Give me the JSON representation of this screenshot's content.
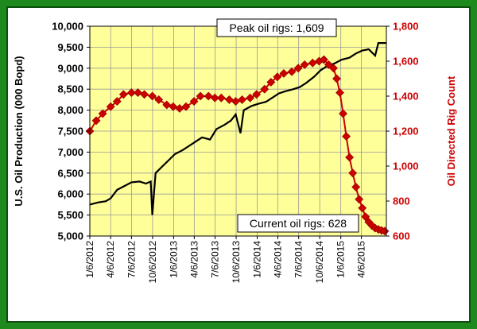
{
  "chart_data": {
    "type": "line",
    "title": "",
    "xlabel": "",
    "ylabel": "U.S. Oil Production (000 Bopd)",
    "ylabel_right": "Oil Directed Rig Count",
    "x_tick_labels": [
      "1/6/2012",
      "4/6/2012",
      "7/6/2012",
      "10/6/2012",
      "1/6/2013",
      "4/6/2013",
      "7/6/2013",
      "10/6/2013",
      "1/6/2014",
      "4/6/2014",
      "7/6/2014",
      "10/6/2014",
      "1/6/2015",
      "4/6/2015"
    ],
    "x_range": [
      "2012-01-06",
      "2015-07-24"
    ],
    "ylim_left": [
      5000,
      10000
    ],
    "ylim_right": [
      600,
      1800
    ],
    "left_ticks": [
      "5,000",
      "5,500",
      "6,000",
      "6,500",
      "7,000",
      "7,500",
      "8,000",
      "8,500",
      "9,000",
      "9,500",
      "10,000"
    ],
    "right_ticks": [
      "600",
      "800",
      "1,000",
      "1,200",
      "1,400",
      "1,600",
      "1,800"
    ],
    "grid": true,
    "colors": {
      "background": "#ffff99",
      "production": "#000000",
      "rigs": "#cc0000",
      "frame": "#1e8a1e"
    },
    "annotations": {
      "peak": "Peak oil rigs: 1,609",
      "current": "Current oil rigs: 628"
    },
    "series": [
      {
        "name": "U.S. Oil Production (000 Bopd)",
        "axis": "left",
        "points": [
          [
            "2012-01-06",
            5750
          ],
          [
            "2012-02-10",
            5800
          ],
          [
            "2012-03-16",
            5830
          ],
          [
            "2012-04-06",
            5900
          ],
          [
            "2012-05-04",
            6100
          ],
          [
            "2012-06-08",
            6200
          ],
          [
            "2012-07-06",
            6280
          ],
          [
            "2012-08-10",
            6300
          ],
          [
            "2012-09-07",
            6250
          ],
          [
            "2012-09-28",
            6300
          ],
          [
            "2012-10-05",
            5500
          ],
          [
            "2012-10-19",
            6500
          ],
          [
            "2012-11-16",
            6650
          ],
          [
            "2012-12-14",
            6800
          ],
          [
            "2013-01-11",
            6950
          ],
          [
            "2013-02-15",
            7050
          ],
          [
            "2013-03-15",
            7150
          ],
          [
            "2013-04-12",
            7250
          ],
          [
            "2013-05-10",
            7350
          ],
          [
            "2013-06-14",
            7300
          ],
          [
            "2013-07-12",
            7550
          ],
          [
            "2013-08-16",
            7650
          ],
          [
            "2013-09-13",
            7750
          ],
          [
            "2013-10-04",
            7900
          ],
          [
            "2013-10-25",
            7450
          ],
          [
            "2013-11-08",
            8000
          ],
          [
            "2013-12-13",
            8100
          ],
          [
            "2014-01-10",
            8150
          ],
          [
            "2014-02-14",
            8200
          ],
          [
            "2014-03-14",
            8300
          ],
          [
            "2014-04-11",
            8400
          ],
          [
            "2014-05-09",
            8450
          ],
          [
            "2014-06-13",
            8500
          ],
          [
            "2014-07-11",
            8550
          ],
          [
            "2014-08-08",
            8650
          ],
          [
            "2014-09-12",
            8800
          ],
          [
            "2014-10-10",
            8950
          ],
          [
            "2014-11-07",
            9050
          ],
          [
            "2014-12-12",
            9120
          ],
          [
            "2015-01-09",
            9200
          ],
          [
            "2015-02-13",
            9250
          ],
          [
            "2015-03-13",
            9350
          ],
          [
            "2015-04-10",
            9420
          ],
          [
            "2015-05-08",
            9450
          ],
          [
            "2015-06-05",
            9300
          ],
          [
            "2015-06-19",
            9600
          ],
          [
            "2015-07-24",
            9600
          ]
        ]
      },
      {
        "name": "Oil Directed Rig Count",
        "axis": "right",
        "points": [
          [
            "2012-01-06",
            1200
          ],
          [
            "2012-02-03",
            1260
          ],
          [
            "2012-03-02",
            1300
          ],
          [
            "2012-04-06",
            1340
          ],
          [
            "2012-05-04",
            1370
          ],
          [
            "2012-06-01",
            1410
          ],
          [
            "2012-07-06",
            1420
          ],
          [
            "2012-08-03",
            1420
          ],
          [
            "2012-08-31",
            1410
          ],
          [
            "2012-10-05",
            1400
          ],
          [
            "2012-11-02",
            1380
          ],
          [
            "2012-12-07",
            1350
          ],
          [
            "2013-01-04",
            1340
          ],
          [
            "2013-02-01",
            1330
          ],
          [
            "2013-03-01",
            1340
          ],
          [
            "2013-04-05",
            1370
          ],
          [
            "2013-05-03",
            1400
          ],
          [
            "2013-06-07",
            1400
          ],
          [
            "2013-07-05",
            1390
          ],
          [
            "2013-08-02",
            1390
          ],
          [
            "2013-09-06",
            1380
          ],
          [
            "2013-10-04",
            1370
          ],
          [
            "2013-11-01",
            1380
          ],
          [
            "2013-12-06",
            1390
          ],
          [
            "2014-01-03",
            1410
          ],
          [
            "2014-02-07",
            1440
          ],
          [
            "2014-03-07",
            1480
          ],
          [
            "2014-04-04",
            1510
          ],
          [
            "2014-05-02",
            1530
          ],
          [
            "2014-06-06",
            1540
          ],
          [
            "2014-07-04",
            1560
          ],
          [
            "2014-08-01",
            1580
          ],
          [
            "2014-09-05",
            1590
          ],
          [
            "2014-10-03",
            1600
          ],
          [
            "2014-10-24",
            1609
          ],
          [
            "2014-11-14",
            1580
          ],
          [
            "2014-12-05",
            1560
          ],
          [
            "2014-12-19",
            1500
          ],
          [
            "2015-01-02",
            1420
          ],
          [
            "2015-01-16",
            1300
          ],
          [
            "2015-01-30",
            1170
          ],
          [
            "2015-02-13",
            1050
          ],
          [
            "2015-02-27",
            960
          ],
          [
            "2015-03-13",
            880
          ],
          [
            "2015-03-27",
            810
          ],
          [
            "2015-04-10",
            760
          ],
          [
            "2015-04-24",
            710
          ],
          [
            "2015-05-08",
            680
          ],
          [
            "2015-05-22",
            660
          ],
          [
            "2015-06-05",
            645
          ],
          [
            "2015-06-19",
            638
          ],
          [
            "2015-07-03",
            632
          ],
          [
            "2015-07-17",
            628
          ]
        ]
      }
    ]
  }
}
